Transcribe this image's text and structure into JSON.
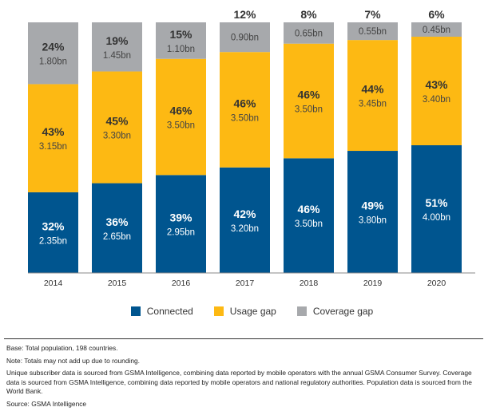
{
  "chart_data": {
    "type": "bar",
    "stacked": true,
    "categories": [
      "2014",
      "2015",
      "2016",
      "2017",
      "2018",
      "2019",
      "2020"
    ],
    "series": [
      {
        "name": "Connected",
        "color": "#00558F",
        "values": [
          2.35,
          2.65,
          2.95,
          3.2,
          3.5,
          3.8,
          4.0
        ],
        "percent_labels": [
          "32%",
          "36%",
          "39%",
          "42%",
          "46%",
          "49%",
          "51%"
        ],
        "value_labels": [
          "2.35bn",
          "2.65bn",
          "2.95bn",
          "3.20bn",
          "3.50bn",
          "3.80bn",
          "4.00bn"
        ]
      },
      {
        "name": "Usage gap",
        "color": "#FDB913",
        "values": [
          3.15,
          3.3,
          3.5,
          3.5,
          3.5,
          3.45,
          3.4
        ],
        "percent_labels": [
          "43%",
          "45%",
          "46%",
          "46%",
          "46%",
          "44%",
          "43%"
        ],
        "value_labels": [
          "3.15bn",
          "3.30bn",
          "3.50bn",
          "3.50bn",
          "3.50bn",
          "3.45bn",
          "3.40bn"
        ]
      },
      {
        "name": "Coverage gap",
        "color": "#A7A9AC",
        "values": [
          1.8,
          1.45,
          1.1,
          0.9,
          0.65,
          0.55,
          0.45
        ],
        "percent_labels": [
          "24%",
          "19%",
          "15%",
          "12%",
          "8%",
          "7%",
          "6%"
        ],
        "value_labels": [
          "1.80bn",
          "1.45bn",
          "1.10bn",
          "0.90bn",
          "0.65bn",
          "0.55bn",
          "0.45bn"
        ]
      }
    ],
    "legend_position": "bottom",
    "grid": false
  },
  "notes": [
    "Base: Total population, 198 countries.",
    "Note: Totals may not add up due to rounding.",
    "Unique subscriber data is sourced from GSMA Intelligence, combining data reported by mobile operators with the annual GSMA Consumer Survey. Coverage data is sourced from GSMA Intelligence, combining data reported by mobile operators and national regulatory authorities. Population data is sourced from the World Bank.",
    "Source: GSMA Intelligence"
  ]
}
